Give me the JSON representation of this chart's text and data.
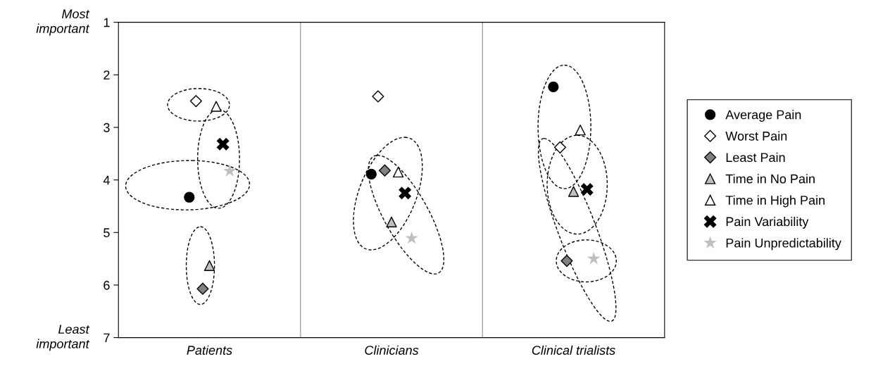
{
  "chart_data": {
    "type": "scatter",
    "categories": [
      "Patients",
      "Clinicians",
      "Clinical trialists"
    ],
    "ylim": [
      7,
      1
    ],
    "yticks": [
      1,
      2,
      3,
      4,
      5,
      6,
      7
    ],
    "annotations": [
      "Most important",
      "Least important"
    ],
    "grid": false,
    "legend": "right",
    "series": [
      {
        "name": "Average Pain",
        "color": "#000000",
        "marker": "circle",
        "values": [
          4.33,
          3.89,
          2.23
        ]
      },
      {
        "name": "Worst Pain",
        "color": "#ffffff",
        "marker": "diamond",
        "values": [
          2.5,
          2.41,
          3.38
        ]
      },
      {
        "name": "Least Pain",
        "color": "#808080",
        "marker": "diamond",
        "values": [
          6.07,
          3.82,
          5.54
        ]
      },
      {
        "name": "Time in No Pain",
        "color": "#bfbfbf",
        "marker": "triangle",
        "values": [
          5.63,
          4.8,
          4.22
        ]
      },
      {
        "name": "Time in High Pain",
        "color": "#ffffff",
        "marker": "triangle",
        "values": [
          2.6,
          3.85,
          3.05
        ]
      },
      {
        "name": "Pain Variability",
        "color": "#000000",
        "marker": "cross",
        "values": [
          3.32,
          4.25,
          4.18
        ]
      },
      {
        "name": "Pain Unpredictability",
        "color": "#bfbfbf",
        "marker": "star",
        "values": [
          3.83,
          5.11,
          5.5
        ]
      }
    ]
  }
}
